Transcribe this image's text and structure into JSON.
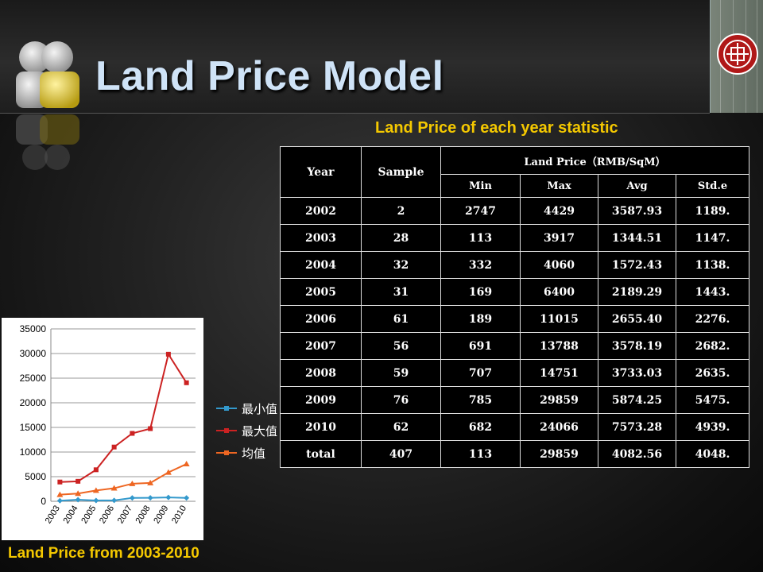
{
  "header": {
    "title": "Land Price Model"
  },
  "table": {
    "title": "Land Price of each year statistic",
    "col_year": "Year",
    "col_sample": "Sample",
    "col_group": "Land Price（RMB/SqM）",
    "sub_cols": [
      "Min",
      "Max",
      "Avg",
      "Std.e"
    ],
    "rows": [
      [
        "2002",
        "2",
        "2747",
        "4429",
        "3587.93",
        "1189."
      ],
      [
        "2003",
        "28",
        "113",
        "3917",
        "1344.51",
        "1147."
      ],
      [
        "2004",
        "32",
        "332",
        "4060",
        "1572.43",
        "1138."
      ],
      [
        "2005",
        "31",
        "169",
        "6400",
        "2189.29",
        "1443."
      ],
      [
        "2006",
        "61",
        "189",
        "11015",
        "2655.40",
        "2276."
      ],
      [
        "2007",
        "56",
        "691",
        "13788",
        "3578.19",
        "2682."
      ],
      [
        "2008",
        "59",
        "707",
        "14751",
        "3733.03",
        "2635."
      ],
      [
        "2009",
        "76",
        "785",
        "29859",
        "5874.25",
        "5475."
      ],
      [
        "2010",
        "62",
        "682",
        "24066",
        "7573.28",
        "4939."
      ],
      [
        "total",
        "407",
        "113",
        "29859",
        "4082.56",
        "4048."
      ]
    ]
  },
  "chart_caption": "Land Price from 2003-2010",
  "chart_data": {
    "type": "line",
    "x": [
      "2003",
      "2004",
      "2005",
      "2006",
      "2007",
      "2008",
      "2009",
      "2010"
    ],
    "ylim": [
      0,
      35000
    ],
    "yticks": [
      "0",
      "5000",
      "10000",
      "15000",
      "20000",
      "25000",
      "30000",
      "35000"
    ],
    "grid": true,
    "legend_placement": "right",
    "series": [
      {
        "name": "最小值",
        "color": "#3399cc",
        "marker": "diamond",
        "values": [
          113,
          332,
          169,
          189,
          691,
          707,
          785,
          682
        ]
      },
      {
        "name": "最大值",
        "color": "#cc2222",
        "marker": "square",
        "values": [
          3917,
          4060,
          6400,
          11015,
          13788,
          14751,
          29859,
          24066
        ]
      },
      {
        "name": "均值",
        "color": "#ee6622",
        "marker": "triangle",
        "values": [
          1344.51,
          1572.43,
          2189.29,
          2655.4,
          3578.19,
          3733.03,
          5874.25,
          7573.28
        ]
      }
    ]
  }
}
